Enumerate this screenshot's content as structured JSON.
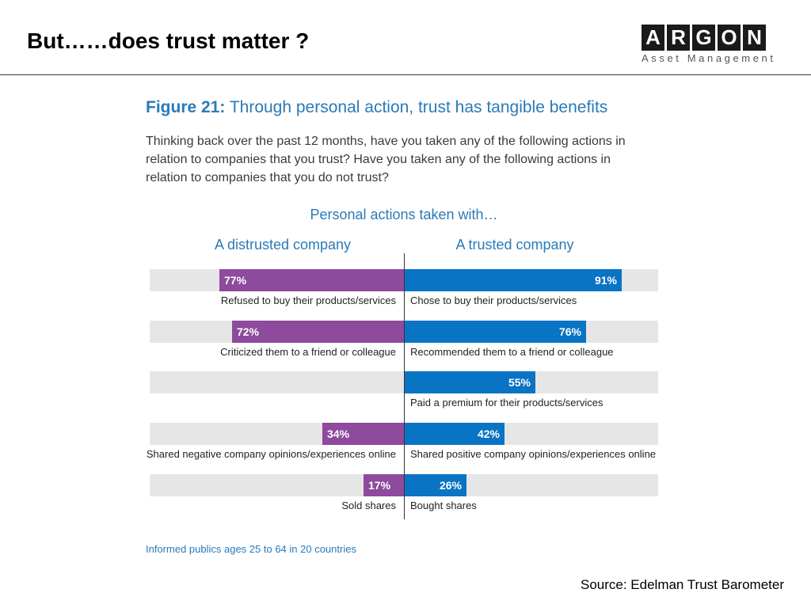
{
  "slide": {
    "title": "But……does trust matter ?",
    "source": "Source: Edelman Trust Barometer"
  },
  "logo": {
    "letters": [
      "A",
      "R",
      "G",
      "O",
      "N"
    ],
    "subtitle": "Asset Management"
  },
  "figure": {
    "number": "Figure 21:",
    "title": "Through personal action, trust has tangible benefits",
    "question": "Thinking back over the past 12 months, have you taken any of the following actions in relation to companies that you trust? Have you taken any of the following actions in relation to companies that you do not trust?",
    "footnote": "Informed publics ages 25 to 64 in 20 countries"
  },
  "colors": {
    "distrusted": "#8e4a9c",
    "trusted": "#0a74c4",
    "band": "#e6e6e6",
    "accent_text": "#2a7ab8"
  },
  "chart_data": {
    "type": "bar",
    "orientation": "horizontal-diverging",
    "title": "Personal actions taken with…",
    "xlim": [
      0,
      100
    ],
    "unit": "%",
    "series": [
      {
        "name": "A distrusted company",
        "side": "left",
        "labels": [
          "Refused to buy their products/services",
          "Criticized them to a friend or colleague",
          "",
          "Shared negative company opinions/experiences online",
          "Sold shares"
        ],
        "values": [
          77,
          72,
          null,
          34,
          17
        ],
        "value_labels": [
          "77%",
          "72%",
          "",
          "34%",
          "17%"
        ]
      },
      {
        "name": "A trusted company",
        "side": "right",
        "labels": [
          "Chose to buy their products/services",
          "Recommended them to a friend or colleague",
          "Paid a premium for their products/services",
          "Shared positive company opinions/experiences online",
          "Bought shares"
        ],
        "values": [
          91,
          76,
          55,
          42,
          26
        ],
        "value_labels": [
          "91%",
          "76%",
          "55%",
          "42%",
          "26%"
        ]
      }
    ]
  }
}
